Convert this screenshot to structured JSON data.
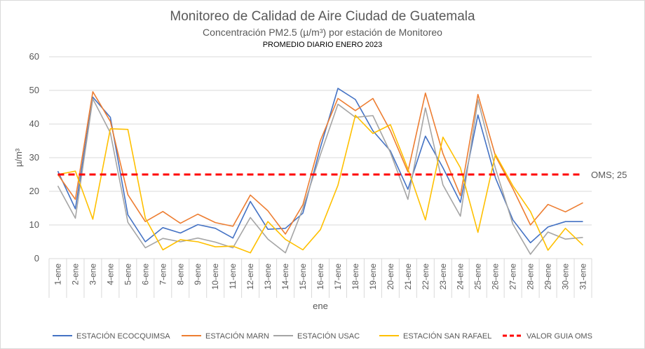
{
  "chart_data": {
    "type": "line",
    "title": "Monitoreo de Calidad de Aire Ciudad de Guatemala",
    "subtitle": "Concentración PM2.5 (µ/m³) por estación de Monitoreo",
    "subsubtitle": "PROMEDIO DIARIO ENERO 2023",
    "xlabel": "ene",
    "ylabel": "µ/m³",
    "ylim": [
      0,
      60
    ],
    "yticks": [
      "0",
      "10",
      "20",
      "30",
      "40",
      "50",
      "60"
    ],
    "grid": true,
    "legend_position": "bottom",
    "categories": [
      "1-ene",
      "2-ene",
      "3-ene",
      "4-ene",
      "5-ene",
      "6-ene",
      "7-ene",
      "8-ene",
      "9-ene",
      "10-ene",
      "11-ene",
      "12-ene",
      "13-ene",
      "14-ene",
      "15-ene",
      "16-ene",
      "17-ene",
      "18-ene",
      "19-ene",
      "20-ene",
      "21-ene",
      "22-ene",
      "23-ene",
      "24-ene",
      "25-ene",
      "26-ene",
      "27-ene",
      "28-ene",
      "29-ene",
      "30-ene",
      "31-ene"
    ],
    "series": [
      {
        "name": "ESTACIÓN ECOCQUIMSA",
        "color": "#4472C4",
        "values": [
          26,
          14.8,
          48,
          42,
          13,
          5,
          9.2,
          7.6,
          10.1,
          9,
          6.1,
          17,
          8.7,
          9,
          13.5,
          33,
          50.6,
          47.3,
          38,
          32,
          20.6,
          36.4,
          27,
          16.7,
          42.7,
          24,
          11.5,
          4.7,
          9.4,
          11,
          11
        ]
      },
      {
        "name": "ESTACIÓN MARN",
        "color": "#ED7D31",
        "values": [
          25,
          17.6,
          49.6,
          40.8,
          19,
          11,
          14,
          10.5,
          13.2,
          10.7,
          9.6,
          18.9,
          14.2,
          7.3,
          16,
          35.1,
          47.6,
          44,
          47.6,
          38,
          25.8,
          49.2,
          31.2,
          18.7,
          48.8,
          30.5,
          20.8,
          10,
          16.1,
          13.9,
          16.6
        ]
      },
      {
        "name": "ESTACIÓN USAC",
        "color": "#A5A5A5",
        "values": [
          21.6,
          12,
          47.5,
          37.4,
          10.8,
          3.2,
          6,
          5,
          6.1,
          4.9,
          3.2,
          12.2,
          5.8,
          1.7,
          14.9,
          30.9,
          45.9,
          42,
          42.5,
          31.5,
          17.6,
          44.8,
          21.9,
          12.6,
          47.2,
          26.8,
          10.2,
          1.3,
          7.9,
          5.8,
          6.3
        ]
      },
      {
        "name": "ESTACIÓN SAN RAFAEL",
        "color": "#FFC000",
        "values": [
          25,
          26,
          11.7,
          38.6,
          38.4,
          12,
          2.6,
          5.6,
          5,
          3.5,
          3.7,
          1.7,
          11,
          5.7,
          2.6,
          8.6,
          21.8,
          42.6,
          37.2,
          39.8,
          26.7,
          11.5,
          36.1,
          27,
          7.8,
          31,
          21.6,
          14,
          2.5,
          9,
          4
        ]
      }
    ],
    "reference_line": {
      "name": "VALOR GUIA OMS",
      "value": 25,
      "color": "#FF0000",
      "label": "OMS; 25"
    }
  }
}
